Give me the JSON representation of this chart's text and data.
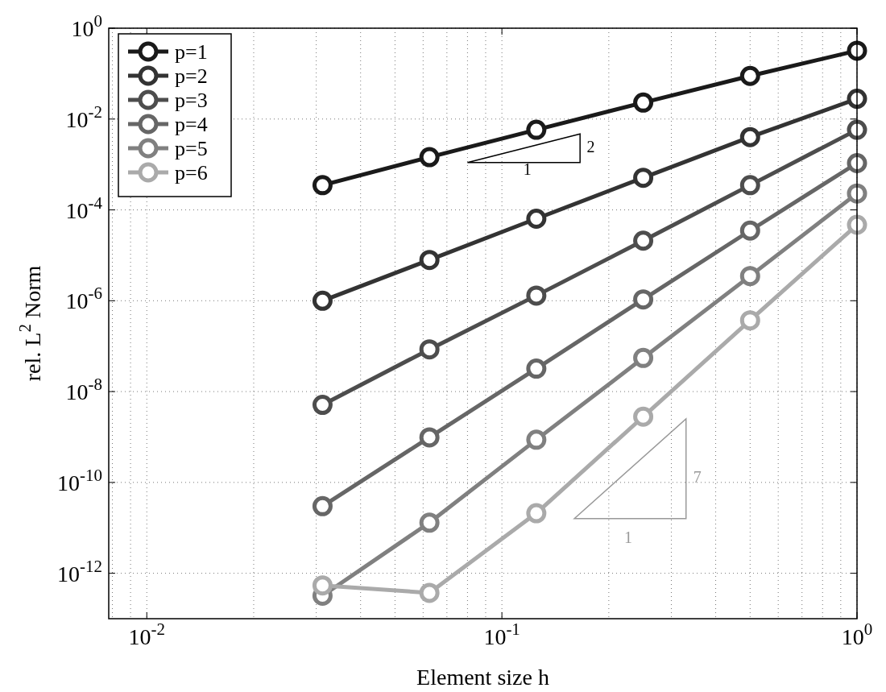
{
  "chart_data": {
    "type": "line",
    "xlabel": "Element size h",
    "ylabel": "rel. L$^{2}$ Norm",
    "log": "xy",
    "grid": true,
    "legend": "top left",
    "marker": "circle",
    "line_style": "solid",
    "xlim": [
      0.0078125,
      1
    ],
    "xticks": [
      {
        "value": 0.01,
        "label": "10$^{-2}$"
      },
      {
        "value": 0.1,
        "label": "10$^{-1}$"
      },
      {
        "value": 1,
        "label": "10$^{0}$"
      }
    ],
    "ylim": [
      1e-13,
      1
    ],
    "yticks": [
      {
        "value": 1e-12,
        "label": "10$^{-12}$"
      },
      {
        "value": 1e-10,
        "label": "10$^{-10}$"
      },
      {
        "value": 1e-08,
        "label": "10$^{-8}$"
      },
      {
        "value": 1e-06,
        "label": "10$^{-6}$"
      },
      {
        "value": 0.0001,
        "label": "10$^{-4}$"
      },
      {
        "value": 0.01,
        "label": "10$^{-2}$"
      },
      {
        "value": 1,
        "label": "10$^{0}$"
      }
    ],
    "x": [
      0.03125,
      0.0625,
      0.125,
      0.25,
      0.5,
      1
    ],
    "series": [
      {
        "name": "p=1",
        "color": "#1a1a1a",
        "values": [
          0.00035,
          0.00145,
          0.0058,
          0.023,
          0.089,
          0.32
        ]
      },
      {
        "name": "p=2",
        "color": "#333333",
        "values": [
          1e-06,
          7.9e-06,
          6.4e-05,
          0.00051,
          0.004,
          0.028
        ]
      },
      {
        "name": "p=3",
        "color": "#4d4d4d",
        "values": [
          5.1e-09,
          8.5e-08,
          1.3e-06,
          2.1e-05,
          0.00035,
          0.0058
        ]
      },
      {
        "name": "p=4",
        "color": "#666666",
        "values": [
          3e-11,
          9.8e-10,
          3.2e-08,
          1.07e-06,
          3.5e-05,
          0.00107
        ]
      },
      {
        "name": "p=5",
        "color": "#808080",
        "values": [
          3.2e-13,
          1.3e-11,
          8.7e-10,
          5.5e-08,
          3.5e-06,
          0.00023
        ]
      },
      {
        "name": "p=6",
        "color": "#aaaaaa",
        "values": [
          5.4e-13,
          3.7e-13,
          2.1e-11,
          2.8e-09,
          3.7e-07,
          4.7e-05
        ]
      }
    ],
    "annotations": [
      "1",
      "2",
      "7",
      "1"
    ]
  }
}
